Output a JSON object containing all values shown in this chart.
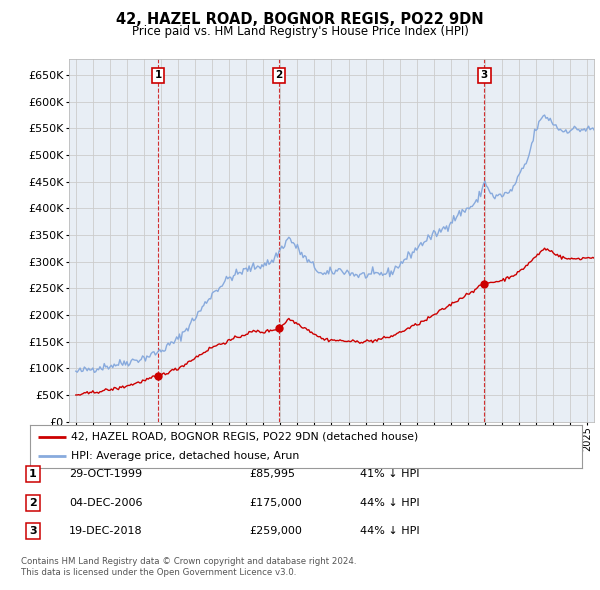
{
  "title": "42, HAZEL ROAD, BOGNOR REGIS, PO22 9DN",
  "subtitle": "Price paid vs. HM Land Registry's House Price Index (HPI)",
  "legend_line1": "42, HAZEL ROAD, BOGNOR REGIS, PO22 9DN (detached house)",
  "legend_line2": "HPI: Average price, detached house, Arun",
  "sale_color": "#cc0000",
  "hpi_color": "#88aadd",
  "grid_color": "#cccccc",
  "background_color": "#ffffff",
  "plot_bg_color": "#e8eef5",
  "transactions": [
    {
      "num": 1,
      "date": "29-OCT-1999",
      "price": 85995,
      "price_str": "£85,995",
      "pct": "41%",
      "dir": "↓",
      "x_year": 1999.83
    },
    {
      "num": 2,
      "date": "04-DEC-2006",
      "price": 175000,
      "price_str": "£175,000",
      "pct": "44%",
      "dir": "↓",
      "x_year": 2006.92
    },
    {
      "num": 3,
      "date": "19-DEC-2018",
      "price": 259000,
      "price_str": "£259,000",
      "pct": "44%",
      "dir": "↓",
      "x_year": 2018.97
    }
  ],
  "ylim": [
    0,
    680000
  ],
  "yticks": [
    0,
    50000,
    100000,
    150000,
    200000,
    250000,
    300000,
    350000,
    400000,
    450000,
    500000,
    550000,
    600000,
    650000
  ],
  "xlim_start": 1994.6,
  "xlim_end": 2025.4,
  "footer_line1": "Contains HM Land Registry data © Crown copyright and database right 2024.",
  "footer_line2": "This data is licensed under the Open Government Licence v3.0."
}
